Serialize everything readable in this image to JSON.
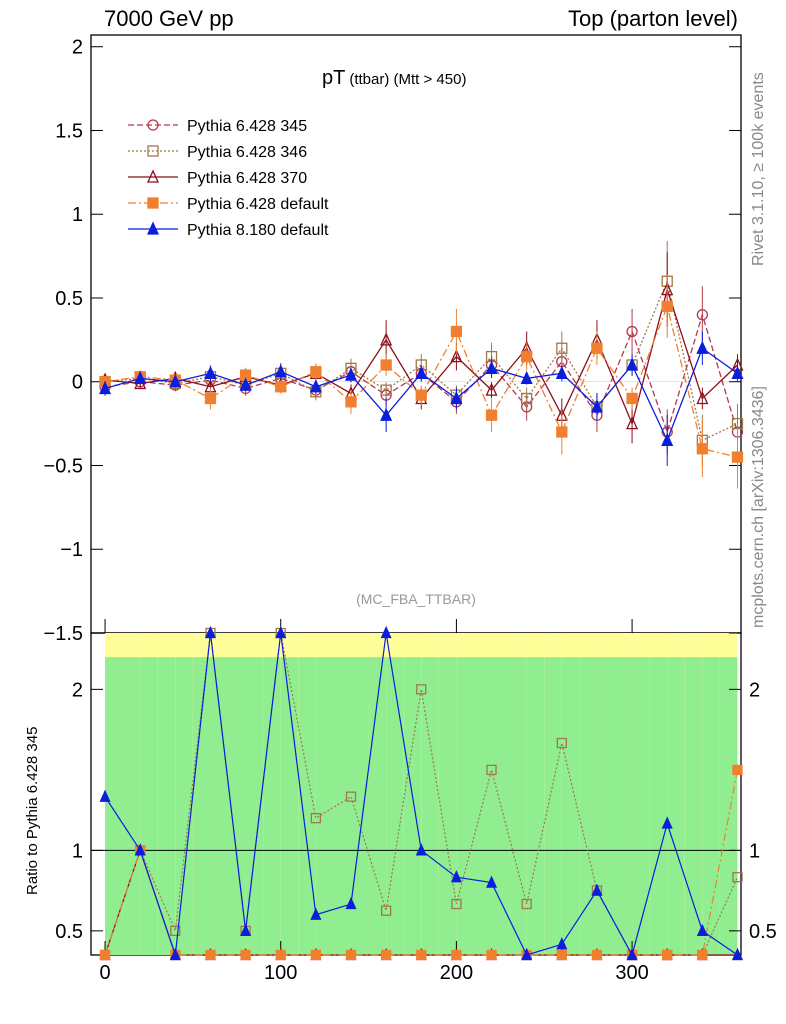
{
  "header": {
    "left": "7000 GeV pp",
    "right": "Top (parton level)"
  },
  "side_labels": {
    "rivet": "Rivet 3.1.10, ≥ 100k events",
    "mcplots": "mcplots.cern.ch [arXiv:1306.3436]"
  },
  "chart_data": {
    "type": "line",
    "title": "pT",
    "title_suffix": "(ttbar) (Mtt > 450)",
    "analysis_label": "(MC_FBA_TTBAR)",
    "xlim": [
      -8,
      362
    ],
    "x_ticks": [
      "0",
      "100",
      "200",
      "300"
    ],
    "main": {
      "ylim": [
        -1.5,
        2.07
      ],
      "y_ticks": [
        "−1.5",
        "−1",
        "−0.5",
        "0",
        "0.5",
        "1",
        "1.5",
        "2"
      ]
    },
    "ratio": {
      "ylabel": "Ratio to Pythia 6.428 345",
      "ylim": [
        0.35,
        2.35
      ],
      "y_ticks": [
        "0.5",
        "1",
        "2"
      ]
    },
    "legend": {
      "placement": "top-left"
    },
    "series": [
      {
        "name": "Pythia 6.428 345",
        "color": "#b5384c",
        "marker": "open-circle",
        "dash": "6,3",
        "x": [
          0,
          20,
          40,
          60,
          80,
          100,
          120,
          140,
          160,
          180,
          200,
          220,
          240,
          260,
          280,
          300,
          320,
          340,
          360
        ],
        "y": [
          -0.03,
          0.0,
          -0.02,
          0.01,
          -0.04,
          0.02,
          -0.05,
          0.06,
          -0.08,
          0.05,
          -0.12,
          0.1,
          -0.15,
          0.12,
          -0.2,
          0.3,
          -0.3,
          0.4,
          -0.3
        ]
      },
      {
        "name": "Pythia 6.428 346",
        "color": "#a0784a",
        "marker": "open-square",
        "dash": "2,2",
        "x": [
          0,
          20,
          40,
          60,
          80,
          100,
          120,
          140,
          160,
          180,
          200,
          220,
          240,
          260,
          280,
          300,
          320,
          340,
          360
        ],
        "y": [
          0.0,
          0.02,
          -0.01,
          0.03,
          -0.02,
          0.05,
          -0.06,
          0.08,
          -0.05,
          0.1,
          -0.08,
          0.15,
          -0.1,
          0.2,
          -0.15,
          0.1,
          0.6,
          -0.35,
          -0.25
        ]
      },
      {
        "name": "Pythia 6.428 370",
        "color": "#8b0f1c",
        "marker": "open-triangle",
        "dash": "",
        "x": [
          0,
          20,
          40,
          60,
          80,
          100,
          120,
          140,
          160,
          180,
          200,
          220,
          240,
          260,
          280,
          300,
          320,
          340,
          360
        ],
        "y": [
          0.01,
          -0.01,
          0.02,
          -0.03,
          0.03,
          -0.02,
          0.05,
          -0.07,
          0.25,
          -0.1,
          0.15,
          -0.05,
          0.2,
          -0.2,
          0.25,
          -0.25,
          0.55,
          -0.1,
          0.1
        ]
      },
      {
        "name": "Pythia 6.428 default",
        "color": "#f08030",
        "marker": "filled-square",
        "dash": "8,3,2,3",
        "x": [
          0,
          20,
          40,
          60,
          80,
          100,
          120,
          140,
          160,
          180,
          200,
          220,
          240,
          260,
          280,
          300,
          320,
          340,
          360
        ],
        "y": [
          0.0,
          0.03,
          0.01,
          -0.1,
          0.04,
          -0.03,
          0.06,
          -0.12,
          0.1,
          -0.08,
          0.3,
          -0.2,
          0.15,
          -0.3,
          0.2,
          -0.1,
          0.45,
          -0.4,
          -0.45
        ]
      },
      {
        "name": "Pythia 8.180 default",
        "color": "#0a1edc",
        "marker": "filled-triangle",
        "dash": "",
        "x": [
          0,
          20,
          40,
          60,
          80,
          100,
          120,
          140,
          160,
          180,
          200,
          220,
          240,
          260,
          280,
          300,
          320,
          340,
          360
        ],
        "y": [
          -0.04,
          0.02,
          0.0,
          0.05,
          -0.02,
          0.06,
          -0.03,
          0.04,
          -0.2,
          0.05,
          -0.1,
          0.08,
          0.02,
          0.05,
          -0.15,
          0.1,
          -0.35,
          0.2,
          0.05
        ]
      }
    ]
  }
}
